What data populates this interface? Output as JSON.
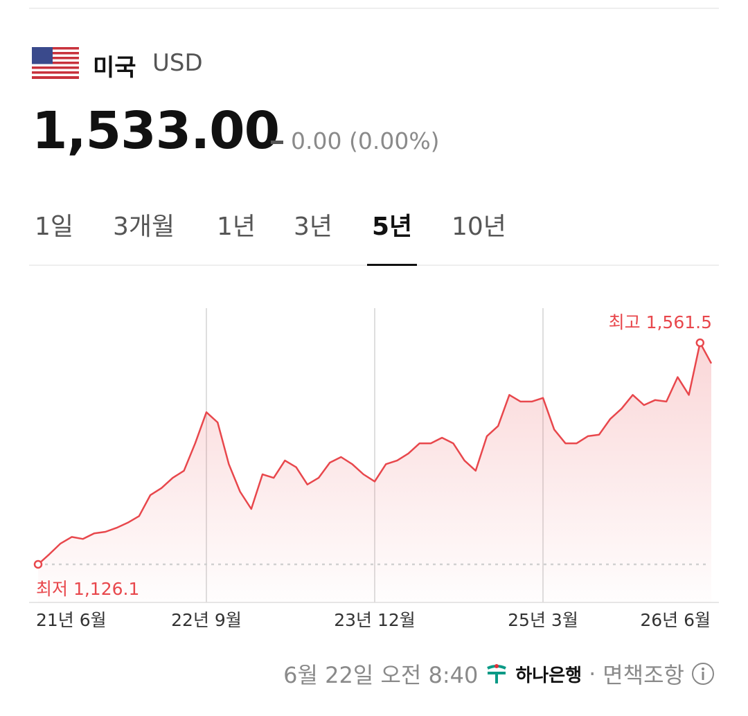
{
  "header": {
    "country": "미국",
    "currency": "USD"
  },
  "quote": {
    "price": "1,533.00",
    "change": "0.00 (0.00%)"
  },
  "tabs": {
    "items": [
      "1일",
      "3개월",
      "1년",
      "3년",
      "5년",
      "10년"
    ],
    "active": 4
  },
  "chart_data": {
    "type": "line",
    "color": "#e8474c",
    "categories": [
      "21년 6월",
      null,
      null,
      null,
      null,
      null,
      null,
      null,
      null,
      null,
      null,
      null,
      null,
      null,
      null,
      "22년 9월",
      null,
      null,
      null,
      null,
      null,
      null,
      null,
      null,
      null,
      null,
      null,
      null,
      null,
      null,
      "23년 12월",
      null,
      null,
      null,
      null,
      null,
      null,
      null,
      null,
      null,
      null,
      null,
      null,
      null,
      null,
      "25년 3월",
      null,
      null,
      null,
      null,
      null,
      null,
      null,
      null,
      null,
      null,
      null,
      null,
      null,
      null,
      "26년 6월"
    ],
    "values": [
      1126.1,
      1146,
      1167,
      1180,
      1176,
      1187,
      1190,
      1198,
      1208,
      1221,
      1262,
      1276,
      1296,
      1310,
      1364,
      1425,
      1405,
      1323,
      1269,
      1235,
      1303,
      1296,
      1330,
      1317,
      1283,
      1296,
      1326,
      1337,
      1323,
      1303,
      1289,
      1323,
      1330,
      1344,
      1364,
      1364,
      1375,
      1364,
      1330,
      1310,
      1378,
      1398,
      1459,
      1446,
      1446,
      1453,
      1391,
      1364,
      1364,
      1378,
      1381,
      1412,
      1432,
      1459,
      1439,
      1449,
      1446,
      1494,
      1459,
      1561.5,
      1521
    ],
    "value_labels": [
      "최저 1,126.1",
      null,
      null,
      null,
      null,
      null,
      null,
      null,
      null,
      null,
      null,
      null,
      null,
      null,
      null,
      null,
      null,
      null,
      null,
      null,
      null,
      null,
      null,
      null,
      null,
      null,
      null,
      null,
      null,
      null,
      null,
      null,
      null,
      null,
      null,
      null,
      null,
      null,
      null,
      null,
      null,
      null,
      null,
      null,
      null,
      null,
      null,
      null,
      null,
      null,
      null,
      null,
      null,
      null,
      null,
      null,
      null,
      null,
      null,
      "최고 1,561.5",
      null
    ]
  },
  "footer": {
    "timestamp": "6월 22일 오전 8:40",
    "source": "하나은행",
    "disclaimer": "면책조항"
  }
}
